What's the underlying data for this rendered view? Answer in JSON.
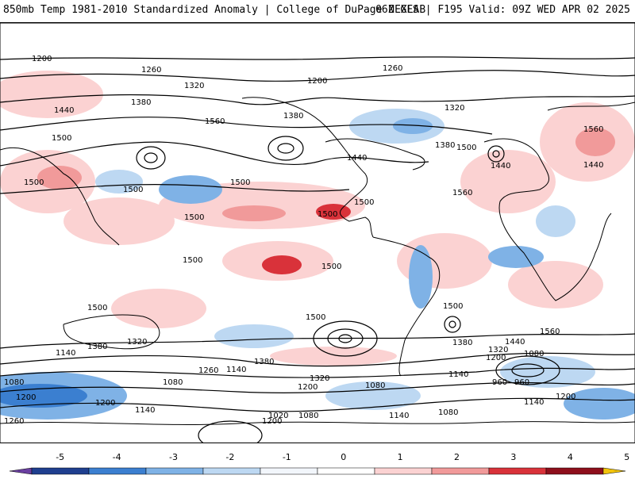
{
  "header": {
    "left_title": "850mb Temp 1981-2010 Standardized Anomaly | College of DuPage NEXLAB",
    "right_title": "06Z GFS | F195 Valid: 09Z WED APR 02 2025"
  },
  "colorbar": {
    "labels": [
      "-5",
      "-4",
      "-3",
      "-2",
      "-1",
      "0",
      "1",
      "2",
      "3",
      "4",
      "5"
    ],
    "colors": [
      "#6a3fa0",
      "#1f3f8f",
      "#3b7fd0",
      "#7fb2e6",
      "#bdd8f2",
      "#f2f6fb",
      "#ffffff",
      "#fbd2d2",
      "#f19a9a",
      "#d9323a",
      "#8e0f1c",
      "#f2c40c"
    ]
  },
  "map": {
    "contour_labels": [
      "1200",
      "1260",
      "1320",
      "1380",
      "1440",
      "1500",
      "1560",
      "1200",
      "1260",
      "1320",
      "1380",
      "1440",
      "1500",
      "1560",
      "1500",
      "1500",
      "1500",
      "1500",
      "1500",
      "1500",
      "1500",
      "1500",
      "1440",
      "1560",
      "1380",
      "1440",
      "1500",
      "1500",
      "1500",
      "1560",
      "1440",
      "1380",
      "1320",
      "1200",
      "1140",
      "1080",
      "960",
      "1020",
      "1080",
      "1140",
      "1200",
      "1260",
      "1140",
      "1080",
      "1200",
      "1260",
      "1080",
      "1200",
      "1140",
      "1080",
      "1200",
      "1320",
      "1380",
      "1140",
      "1320",
      "1080",
      "1200",
      "960",
      "1140",
      "1380"
    ]
  }
}
